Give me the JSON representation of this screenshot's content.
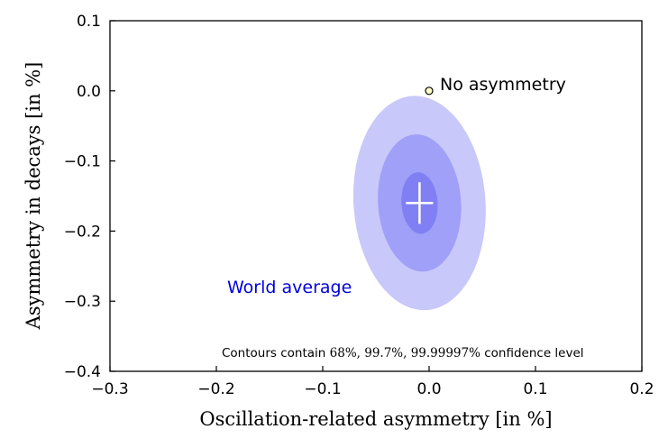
{
  "chart_data": {
    "type": "scatter",
    "title": "",
    "xlabel": "Oscillation-related asymmetry [in %]",
    "ylabel": "Asymmetry in decays [in %]",
    "xlim": [
      -0.3,
      0.2
    ],
    "ylim": [
      -0.4,
      0.1
    ],
    "xticks": [
      -0.3,
      -0.2,
      -0.1,
      0.0,
      0.1,
      0.2
    ],
    "xtick_labels": [
      "−0.3",
      "−0.2",
      "−0.1",
      "0.0",
      "0.1",
      "0.2"
    ],
    "yticks": [
      0.1,
      0.0,
      -0.1,
      -0.2,
      -0.3,
      -0.4
    ],
    "ytick_labels": [
      "0.1",
      "0.0",
      "−0.1",
      "−0.2",
      "−0.3",
      "−0.4"
    ],
    "grid": false,
    "world_average": {
      "label": "World average",
      "center": [
        -0.009,
        -0.16
      ],
      "contours": [
        {
          "level": "99.99997%",
          "half_width_x": 0.062,
          "half_height_y": 0.153,
          "color": "#c8c8fa"
        },
        {
          "level": "99.7%",
          "half_width_x": 0.039,
          "half_height_y": 0.098,
          "color": "#a0a0f8"
        },
        {
          "level": "68%",
          "half_width_x": 0.017,
          "half_height_y": 0.044,
          "color": "#8080f4"
        }
      ],
      "label_color": "#0000dd"
    },
    "no_asymmetry": {
      "label": "No asymmetry",
      "x": 0.0,
      "y": 0.0,
      "color": "#ffffcc"
    },
    "note": {
      "prefix": "Contours contain ",
      "levels": "68%, 99.7%, 99.99997%",
      "suffix": " confidence level"
    }
  }
}
